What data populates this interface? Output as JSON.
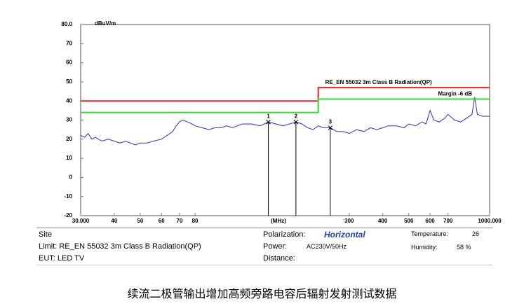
{
  "chart_data": {
    "type": "line",
    "ylabel": "dBuV/m",
    "xlabel": "(MHz)",
    "xscale": "log",
    "xlim": [
      30,
      1000
    ],
    "ylim": [
      -20,
      80
    ],
    "xticks": [
      {
        "value": 30,
        "label": "30.000"
      },
      40,
      50,
      60,
      70,
      80,
      300,
      400,
      500,
      600,
      700,
      {
        "value": 1000,
        "label": "1000.000"
      }
    ],
    "yticks": [
      -20,
      -10,
      0,
      10,
      20,
      30,
      40,
      50,
      60,
      70,
      {
        "value": 80,
        "label": "80.0"
      }
    ],
    "grid": false,
    "series": [
      {
        "color": "#2b2bd6",
        "x": [
          30,
          31,
          32,
          33,
          34,
          35,
          36,
          38,
          40,
          42,
          44,
          46,
          48,
          50,
          53,
          56,
          60,
          63,
          66,
          68,
          70,
          72,
          75,
          78,
          80,
          85,
          90,
          95,
          100,
          105,
          110,
          115,
          120,
          130,
          140,
          150,
          160,
          170,
          180,
          190,
          200,
          210,
          220,
          230,
          240,
          255,
          270,
          285,
          300,
          320,
          340,
          360,
          380,
          400,
          420,
          450,
          480,
          500,
          530,
          560,
          580,
          600,
          620,
          650,
          680,
          700,
          740,
          780,
          820,
          860,
          880,
          900,
          940,
          1000
        ],
        "values": [
          22,
          21,
          23,
          20,
          21,
          20,
          19,
          20,
          19,
          18,
          19,
          18,
          17,
          18,
          18,
          19,
          20,
          22,
          24,
          27,
          29,
          30,
          29,
          28,
          27,
          26,
          25,
          26,
          26,
          27,
          26,
          27,
          28,
          28,
          27,
          29,
          28,
          27,
          28,
          29,
          28,
          26,
          25,
          27,
          26,
          26,
          24,
          24,
          23,
          25,
          24,
          26,
          25,
          26,
          27,
          27,
          26,
          28,
          27,
          29,
          28,
          35,
          30,
          29,
          31,
          33,
          30,
          29,
          31,
          33,
          42,
          33,
          32,
          32
        ]
      },
      {
        "name": "RE_EN 55032 3m Class B Radiation(QP)",
        "color": "#ee2222",
        "x": [
          30,
          230,
          230,
          1000
        ],
        "values": [
          40,
          40,
          47,
          47
        ]
      },
      {
        "name": "Margin -6 dB",
        "color": "#33dd33",
        "x": [
          30,
          230,
          230,
          1000
        ],
        "values": [
          34,
          34,
          41,
          41
        ]
      }
    ],
    "markers": [
      {
        "label": "1",
        "x": 150,
        "value": 29
      },
      {
        "label": "2",
        "x": 190,
        "value": 29
      },
      {
        "label": "3",
        "x": 255,
        "value": 26
      }
    ]
  },
  "info": {
    "site": "Site",
    "limit_label": "Limit:",
    "limit": "RE_EN 55032 3m Class B Radiation(QP)",
    "eut_label": "EUT:",
    "eut": "LED TV",
    "polarization_label": "Polarization:",
    "polarization": "Horizontal",
    "power_label": "Power:",
    "power": "AC230V/50Hz",
    "distance_label": "Distance:",
    "temperature_label": "Temperature:",
    "temperature": "26",
    "humidity_label": "Humidity:",
    "humidity": "58 %"
  },
  "caption": "续流二极管输出增加高频旁路电容后辐射发射测试数据"
}
